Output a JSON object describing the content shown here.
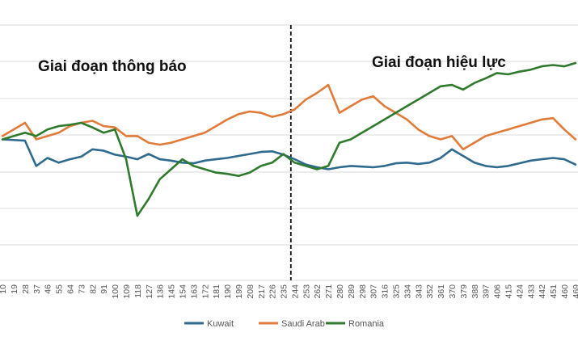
{
  "chart_data": {
    "type": "line",
    "x": [
      10,
      28,
      37,
      46,
      55,
      64,
      73,
      82,
      91,
      100,
      109,
      118,
      127,
      136,
      145,
      154,
      163,
      172,
      181,
      190,
      199,
      208,
      217,
      226,
      235,
      244,
      253,
      262,
      271,
      280,
      289,
      298,
      307,
      316,
      325,
      334,
      343,
      352,
      361,
      370,
      379,
      388,
      397,
      406,
      415,
      424,
      433,
      442,
      451,
      460,
      469
    ],
    "x_tick_labels": [
      "10",
      "19",
      "28",
      "37",
      "46",
      "55",
      "64",
      "73",
      "82",
      "91",
      "100",
      "109",
      "118",
      "127",
      "136",
      "145",
      "154",
      "163",
      "172",
      "181",
      "190",
      "199",
      "208",
      "217",
      "226",
      "235",
      "244",
      "253",
      "262",
      "271",
      "280",
      "289",
      "298",
      "307",
      "316",
      "325",
      "334",
      "343",
      "352",
      "361",
      "370",
      "379",
      "388",
      "397",
      "406",
      "415",
      "424",
      "433",
      "442",
      "451",
      "460",
      "469"
    ],
    "x_range": [
      8,
      471
    ],
    "divider_x": 241,
    "annotations": [
      "Giai đoạn thông báo",
      "Giai đoạn hiệu lực"
    ],
    "series": [
      {
        "name": "Kuwait",
        "color": "#2e6a8e",
        "values": [
          210,
          212,
          250,
          238,
          245,
          240,
          236,
          225,
          227,
          233,
          236,
          240,
          232,
          240,
          242,
          245,
          246,
          242,
          240,
          238,
          235,
          232,
          229,
          228,
          233,
          240,
          248,
          252,
          255,
          252,
          250,
          251,
          252,
          250,
          246,
          245,
          247,
          245,
          238,
          225,
          235,
          245,
          250,
          252,
          250,
          246,
          242,
          240,
          238,
          240,
          248
        ]
      },
      {
        "name": "Saudi Arab",
        "color": "#e07b39",
        "values": [
          205,
          185,
          210,
          205,
          200,
          190,
          185,
          182,
          190,
          192,
          205,
          205,
          215,
          218,
          215,
          210,
          205,
          200,
          190,
          180,
          172,
          168,
          170,
          176,
          172,
          165,
          150,
          140,
          128,
          170,
          160,
          150,
          145,
          160,
          170,
          180,
          195,
          205,
          210,
          205,
          225,
          215,
          205,
          200,
          195,
          190,
          185,
          180,
          178,
          195,
          210
        ]
      },
      {
        "name": "Romania",
        "color": "#2f7a2c",
        "values": [
          210,
          200,
          205,
          195,
          190,
          188,
          185,
          192,
          200,
          195,
          240,
          325,
          300,
          270,
          255,
          240,
          250,
          255,
          260,
          262,
          265,
          260,
          250,
          245,
          232,
          245,
          250,
          255,
          250,
          215,
          210,
          200,
          190,
          180,
          170,
          160,
          150,
          140,
          130,
          128,
          135,
          125,
          118,
          110,
          112,
          108,
          105,
          100,
          98,
          100,
          95
        ]
      }
    ],
    "y_scale": "unlabeled",
    "y_range": [
      0,
      420
    ],
    "grid": true,
    "legend": {
      "position": "bottom",
      "entries": [
        "Kuwait",
        "Saudi Arab",
        "Romania"
      ]
    }
  }
}
